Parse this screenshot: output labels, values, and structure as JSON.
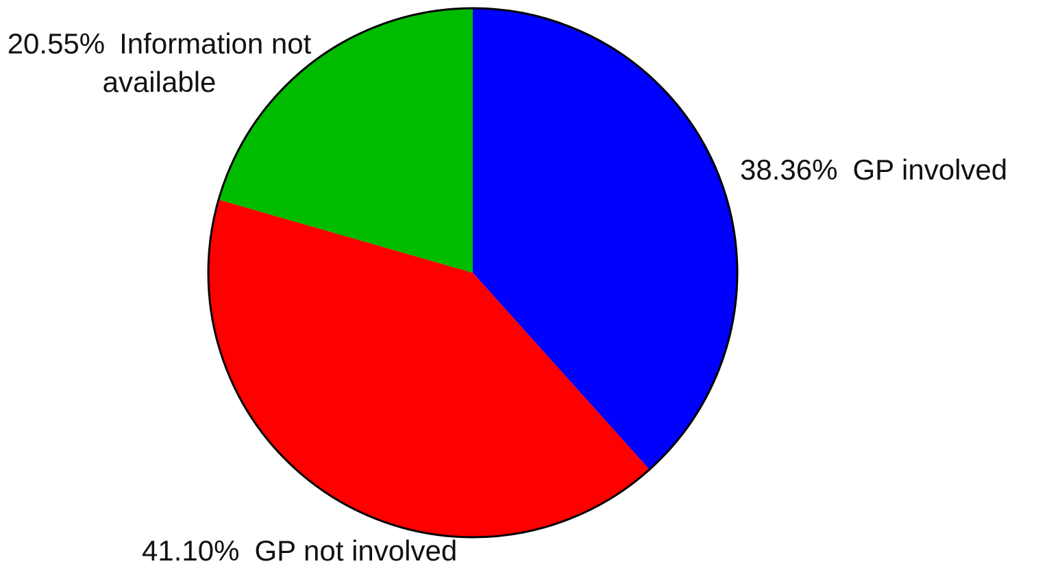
{
  "chart_data": {
    "type": "pie",
    "categories": [
      "GP involved",
      "GP not involved",
      "Information not available"
    ],
    "values": [
      38.36,
      41.1,
      20.55
    ],
    "value_labels": [
      "38.36%",
      "41.10%",
      "20.55%"
    ],
    "colors": [
      "#0000ff",
      "#ff0000",
      "#00bb00"
    ]
  }
}
